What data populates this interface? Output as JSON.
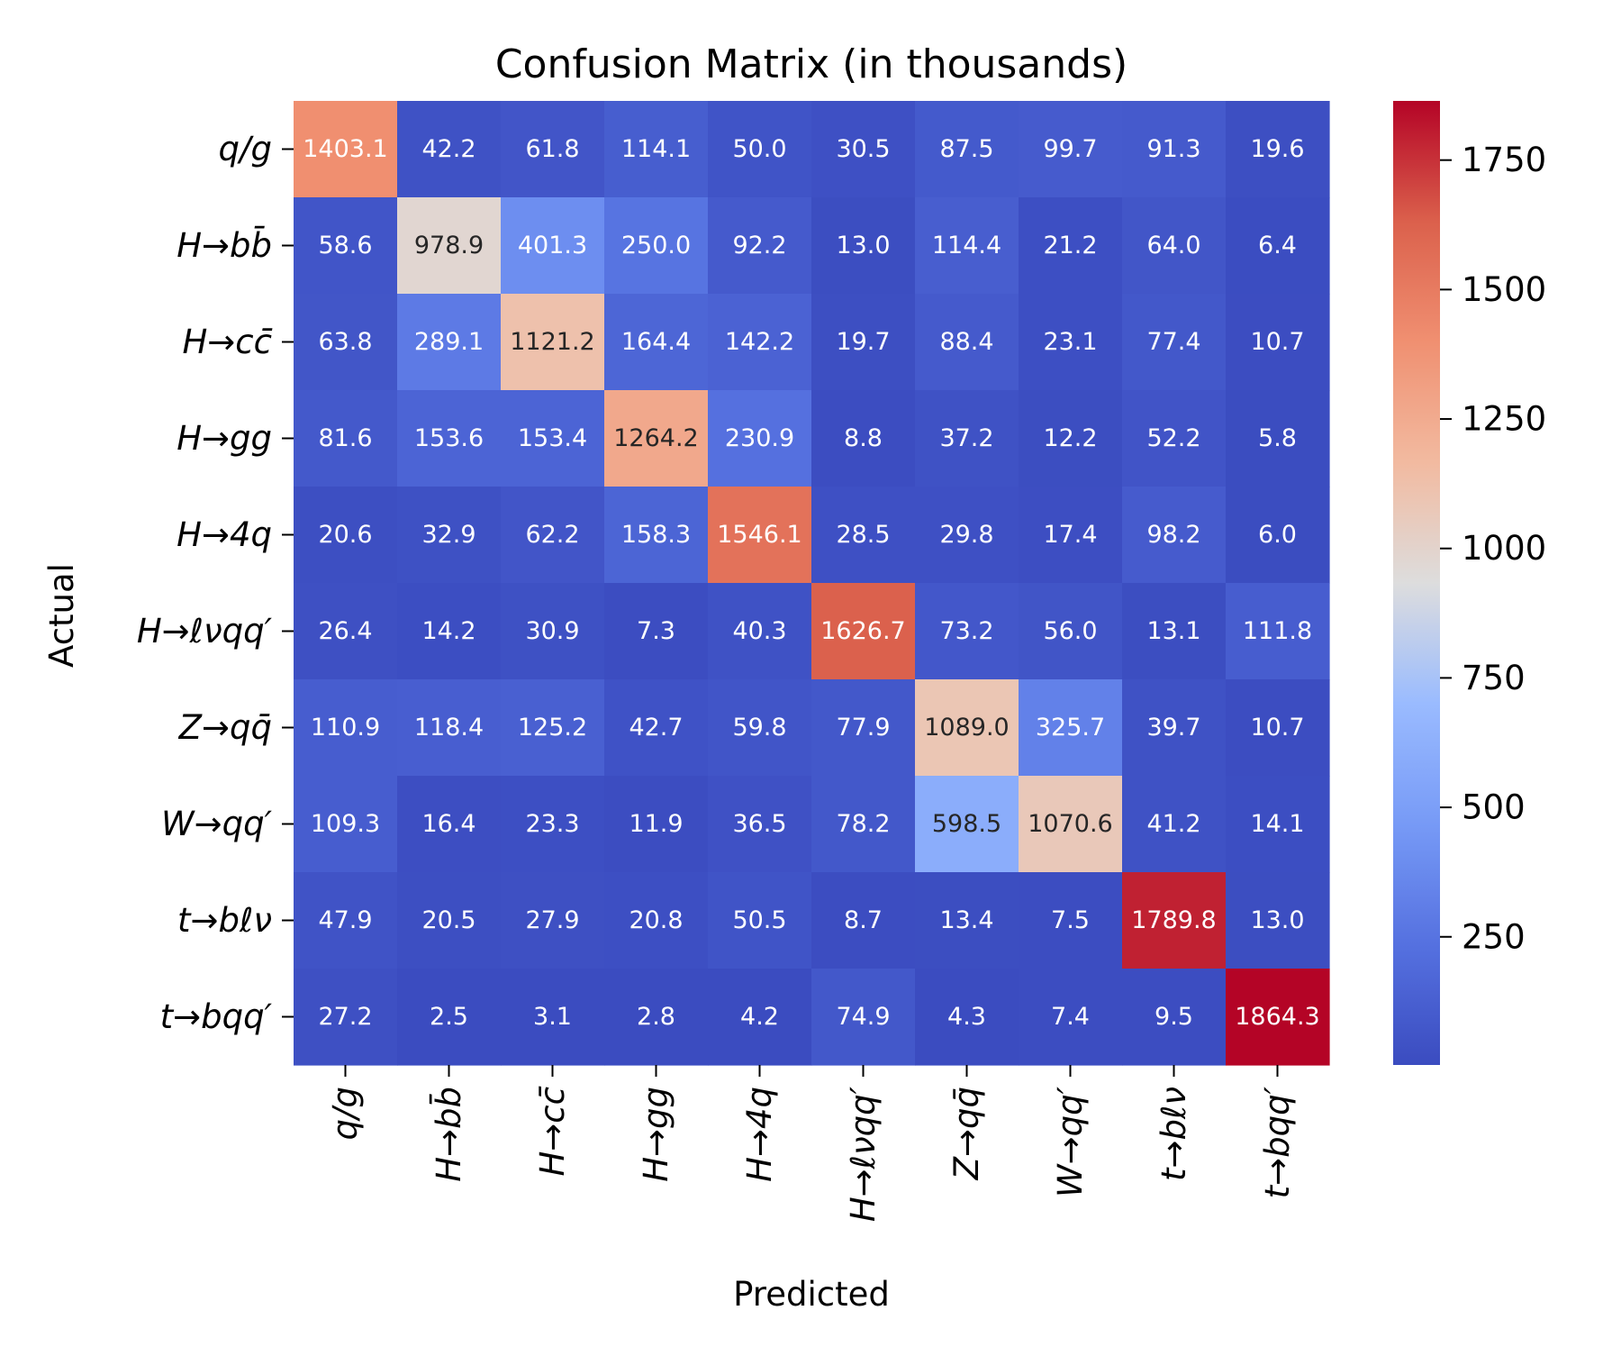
{
  "chart_data": {
    "type": "heatmap",
    "title": "Confusion Matrix (in thousands)",
    "xlabel": "Predicted",
    "ylabel": "Actual",
    "x_categories": [
      "q/g",
      "H→bb̄",
      "H→cc̄",
      "H→gg",
      "H→4q",
      "H→ℓνqq′",
      "Z→qq̄",
      "W→qq′",
      "t→bℓν",
      "t→bqq′"
    ],
    "y_categories": [
      "q/g",
      "H→bb̄",
      "H→cc̄",
      "H→gg",
      "H→4q",
      "H→ℓνqq′",
      "Z→qq̄",
      "W→qq′",
      "t→bℓν",
      "t→bqq′"
    ],
    "values": [
      [
        1403.1,
        42.2,
        61.8,
        114.1,
        50.0,
        30.5,
        87.5,
        99.7,
        91.3,
        19.6
      ],
      [
        58.6,
        978.9,
        401.3,
        250.0,
        92.2,
        13.0,
        114.4,
        21.2,
        64.0,
        6.4
      ],
      [
        63.8,
        289.1,
        1121.2,
        164.4,
        142.2,
        19.7,
        88.4,
        23.1,
        77.4,
        10.7
      ],
      [
        81.6,
        153.6,
        153.4,
        1264.2,
        230.9,
        8.8,
        37.2,
        12.2,
        52.2,
        5.8
      ],
      [
        20.6,
        32.9,
        62.2,
        158.3,
        1546.1,
        28.5,
        29.8,
        17.4,
        98.2,
        6.0
      ],
      [
        26.4,
        14.2,
        30.9,
        7.3,
        40.3,
        1626.7,
        73.2,
        56.0,
        13.1,
        111.8
      ],
      [
        110.9,
        118.4,
        125.2,
        42.7,
        59.8,
        77.9,
        1089.0,
        325.7,
        39.7,
        10.7
      ],
      [
        109.3,
        16.4,
        23.3,
        11.9,
        36.5,
        78.2,
        598.5,
        1070.6,
        41.2,
        14.1
      ],
      [
        47.9,
        20.5,
        27.9,
        20.8,
        50.5,
        8.7,
        13.4,
        7.5,
        1789.8,
        13.0
      ],
      [
        27.2,
        2.5,
        3.1,
        2.8,
        4.2,
        74.9,
        4.3,
        7.4,
        9.5,
        1864.3
      ]
    ],
    "value_format": "0.1f",
    "colormap": "coolwarm",
    "colorbar": {
      "range": [
        2.5,
        1864.3
      ],
      "ticks": [
        250,
        500,
        750,
        1000,
        1250,
        1500,
        1750
      ],
      "tick_labels": [
        "250",
        "500",
        "750",
        "1000",
        "1250",
        "1500",
        "1750"
      ]
    },
    "x_tick_rotation": "vertical"
  }
}
